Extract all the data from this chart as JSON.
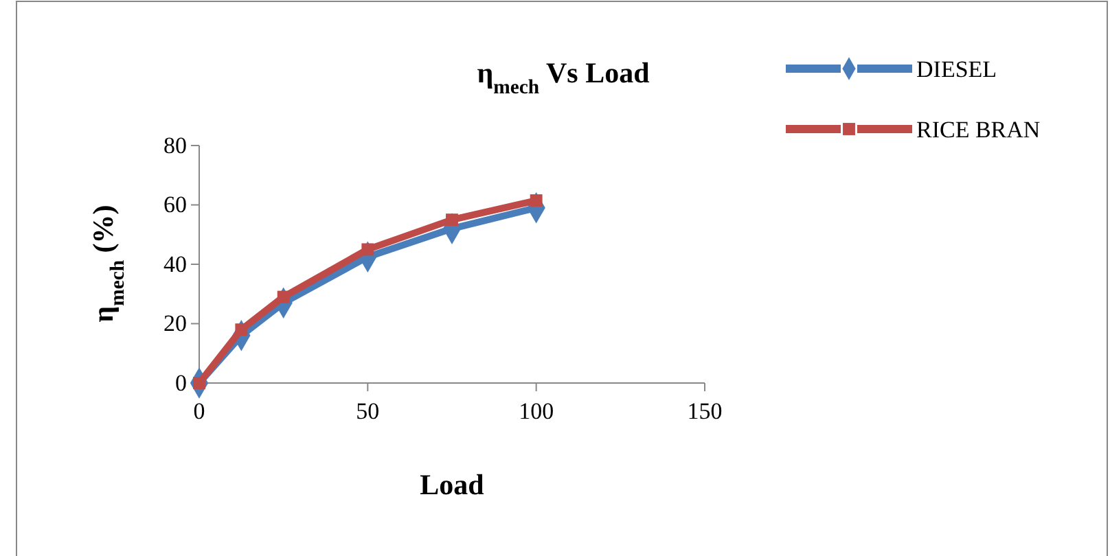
{
  "chart_data": {
    "type": "line",
    "title": "η$_{mech}$ Vs Load",
    "xlabel": "Load",
    "ylabel": "η$_{mech}$ (%)",
    "xlim": [
      0,
      150
    ],
    "xticks": [
      0,
      50,
      100,
      150
    ],
    "ylim": [
      0,
      80
    ],
    "yticks": [
      0,
      20,
      40,
      60,
      80
    ],
    "grid": false,
    "legend": "right",
    "line_style": "solid",
    "series": [
      {
        "name": "DIESEL",
        "color": "#4a7ebb",
        "marker": "diamond",
        "x": [
          0,
          12.5,
          25,
          50,
          75,
          100
        ],
        "values": [
          0,
          16,
          27,
          42.5,
          52,
          59
        ]
      },
      {
        "name": "RICE BRAN",
        "color": "#be4b48",
        "marker": "square",
        "x": [
          0,
          12.5,
          25,
          50,
          75,
          100
        ],
        "values": [
          0,
          18,
          29,
          45,
          55,
          61.5
        ]
      }
    ]
  }
}
